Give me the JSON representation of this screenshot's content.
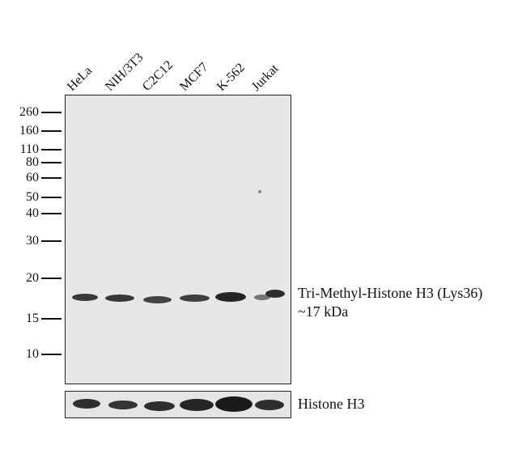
{
  "lanes": [
    "HeLa",
    "NIH/3T3",
    "C2C12",
    "MCF7",
    "K-562",
    "Jurkat"
  ],
  "markers": [
    "260",
    "160",
    "110",
    "80",
    "60",
    "50",
    "40",
    "30",
    "20",
    "15",
    "10"
  ],
  "target_label": {
    "name": "Tri-Methyl-Histone  H3 (Lys36)",
    "size": "~17 kDa"
  },
  "loading_control_label": "Histone H3",
  "colors": {
    "background": "#ffffff",
    "membrane": "#e7e7e7",
    "band": "#1a1a1a"
  }
}
